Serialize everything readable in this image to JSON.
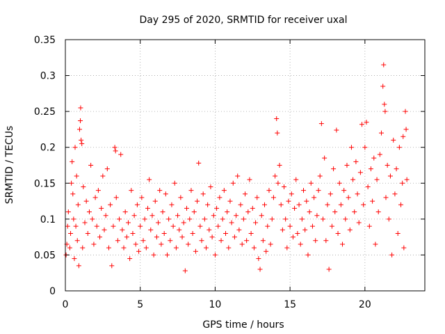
{
  "chart_data": {
    "type": "scatter",
    "title": "Day 295 of 2020, SRMTID for receiver uxal",
    "xlabel": "GPS time / hours",
    "ylabel": "SRMTID / TECUs",
    "xlim": [
      0,
      24
    ],
    "ylim": [
      0,
      0.35
    ],
    "x_ticks": [
      0,
      5,
      10,
      15,
      20
    ],
    "x_tick_labels": [
      "0",
      "5",
      "10",
      "15",
      "20"
    ],
    "y_ticks": [
      0,
      0.05,
      0.1,
      0.15,
      0.2,
      0.25,
      0.3,
      0.35
    ],
    "y_tick_labels": [
      "0",
      "0.05",
      "0.1",
      "0.15",
      "0.2",
      "0.25",
      "0.3",
      "0.35"
    ],
    "grid": true,
    "marker": "+",
    "color": "#ff0000",
    "series": [
      {
        "name": "SRMTID",
        "points": [
          [
            0.05,
            0.05
          ],
          [
            0.1,
            0.065
          ],
          [
            0.15,
            0.09
          ],
          [
            0.2,
            0.11
          ],
          [
            0.3,
            0.06
          ],
          [
            0.35,
            0.08
          ],
          [
            0.4,
            0.15
          ],
          [
            0.45,
            0.18
          ],
          [
            0.5,
            0.135
          ],
          [
            0.55,
            0.1
          ],
          [
            0.6,
            0.045
          ],
          [
            0.65,
            0.2
          ],
          [
            0.7,
            0.09
          ],
          [
            0.75,
            0.16
          ],
          [
            0.8,
            0.07
          ],
          [
            0.85,
            0.12
          ],
          [
            0.9,
            0.035
          ],
          [
            0.95,
            0.225
          ],
          [
            1.0,
            0.237
          ],
          [
            1.02,
            0.255
          ],
          [
            1.05,
            0.21
          ],
          [
            1.1,
            0.205
          ],
          [
            1.15,
            0.06
          ],
          [
            1.2,
            0.145
          ],
          [
            1.3,
            0.095
          ],
          [
            1.4,
            0.125
          ],
          [
            1.5,
            0.08
          ],
          [
            1.6,
            0.11
          ],
          [
            1.7,
            0.175
          ],
          [
            1.8,
            0.1
          ],
          [
            1.9,
            0.065
          ],
          [
            2.0,
            0.13
          ],
          [
            2.1,
            0.09
          ],
          [
            2.2,
            0.14
          ],
          [
            2.3,
            0.075
          ],
          [
            2.4,
            0.115
          ],
          [
            2.5,
            0.16
          ],
          [
            2.6,
            0.085
          ],
          [
            2.7,
            0.105
          ],
          [
            2.8,
            0.17
          ],
          [
            2.9,
            0.06
          ],
          [
            3.0,
            0.12
          ],
          [
            3.1,
            0.035
          ],
          [
            3.2,
            0.09
          ],
          [
            3.3,
            0.2
          ],
          [
            3.35,
            0.195
          ],
          [
            3.4,
            0.13
          ],
          [
            3.5,
            0.07
          ],
          [
            3.6,
            0.1
          ],
          [
            3.7,
            0.19
          ],
          [
            3.8,
            0.085
          ],
          [
            3.9,
            0.06
          ],
          [
            4.0,
            0.11
          ],
          [
            4.1,
            0.075
          ],
          [
            4.2,
            0.095
          ],
          [
            4.3,
            0.045
          ],
          [
            4.4,
            0.14
          ],
          [
            4.5,
            0.08
          ],
          [
            4.6,
            0.105
          ],
          [
            4.7,
            0.065
          ],
          [
            4.8,
            0.12
          ],
          [
            4.9,
            0.055
          ],
          [
            5.0,
            0.09
          ],
          [
            5.1,
            0.13
          ],
          [
            5.2,
            0.07
          ],
          [
            5.3,
            0.1
          ],
          [
            5.4,
            0.06
          ],
          [
            5.5,
            0.115
          ],
          [
            5.6,
            0.155
          ],
          [
            5.7,
            0.085
          ],
          [
            5.8,
            0.105
          ],
          [
            5.9,
            0.05
          ],
          [
            6.0,
            0.125
          ],
          [
            6.1,
            0.075
          ],
          [
            6.2,
            0.095
          ],
          [
            6.3,
            0.14
          ],
          [
            6.4,
            0.065
          ],
          [
            6.5,
            0.11
          ],
          [
            6.6,
            0.08
          ],
          [
            6.7,
            0.135
          ],
          [
            6.8,
            0.05
          ],
          [
            6.9,
            0.1
          ],
          [
            7.0,
            0.07
          ],
          [
            7.1,
            0.12
          ],
          [
            7.2,
            0.09
          ],
          [
            7.3,
            0.15
          ],
          [
            7.4,
            0.06
          ],
          [
            7.5,
            0.105
          ],
          [
            7.6,
            0.085
          ],
          [
            7.7,
            0.13
          ],
          [
            7.8,
            0.075
          ],
          [
            7.9,
            0.095
          ],
          [
            8.0,
            0.028
          ],
          [
            8.1,
            0.115
          ],
          [
            8.2,
            0.065
          ],
          [
            8.3,
            0.1
          ],
          [
            8.4,
            0.14
          ],
          [
            8.5,
            0.08
          ],
          [
            8.6,
            0.11
          ],
          [
            8.7,
            0.055
          ],
          [
            8.8,
            0.125
          ],
          [
            8.9,
            0.178
          ],
          [
            9.0,
            0.09
          ],
          [
            9.1,
            0.07
          ],
          [
            9.2,
            0.135
          ],
          [
            9.3,
            0.1
          ],
          [
            9.4,
            0.06
          ],
          [
            9.5,
            0.12
          ],
          [
            9.6,
            0.085
          ],
          [
            9.7,
            0.145
          ],
          [
            9.8,
            0.075
          ],
          [
            9.9,
            0.105
          ],
          [
            10.0,
            0.05
          ],
          [
            10.1,
            0.115
          ],
          [
            10.2,
            0.09
          ],
          [
            10.3,
            0.13
          ],
          [
            10.4,
            0.07
          ],
          [
            10.5,
            0.1
          ],
          [
            10.6,
            0.14
          ],
          [
            10.7,
            0.08
          ],
          [
            10.8,
            0.11
          ],
          [
            10.9,
            0.06
          ],
          [
            11.0,
            0.125
          ],
          [
            11.1,
            0.095
          ],
          [
            11.2,
            0.15
          ],
          [
            11.3,
            0.075
          ],
          [
            11.4,
            0.105
          ],
          [
            11.5,
            0.16
          ],
          [
            11.6,
            0.085
          ],
          [
            11.7,
            0.12
          ],
          [
            11.8,
            0.065
          ],
          [
            11.9,
            0.1
          ],
          [
            12.0,
            0.135
          ],
          [
            12.1,
            0.07
          ],
          [
            12.2,
            0.11
          ],
          [
            12.3,
            0.155
          ],
          [
            12.4,
            0.08
          ],
          [
            12.5,
            0.115
          ],
          [
            12.6,
            0.06
          ],
          [
            12.7,
            0.095
          ],
          [
            12.8,
            0.13
          ],
          [
            12.9,
            0.045
          ],
          [
            13.0,
            0.03
          ],
          [
            13.1,
            0.105
          ],
          [
            13.2,
            0.07
          ],
          [
            13.3,
            0.12
          ],
          [
            13.4,
            0.055
          ],
          [
            13.5,
            0.09
          ],
          [
            13.6,
            0.14
          ],
          [
            13.7,
            0.065
          ],
          [
            13.8,
            0.1
          ],
          [
            13.9,
            0.13
          ],
          [
            14.0,
            0.16
          ],
          [
            14.1,
            0.24
          ],
          [
            14.15,
            0.22
          ],
          [
            14.2,
            0.15
          ],
          [
            14.3,
            0.175
          ],
          [
            14.4,
            0.12
          ],
          [
            14.5,
            0.085
          ],
          [
            14.6,
            0.145
          ],
          [
            14.7,
            0.1
          ],
          [
            14.8,
            0.06
          ],
          [
            14.9,
            0.125
          ],
          [
            15.0,
            0.09
          ],
          [
            15.1,
            0.135
          ],
          [
            15.2,
            0.075
          ],
          [
            15.3,
            0.115
          ],
          [
            15.4,
            0.155
          ],
          [
            15.5,
            0.08
          ],
          [
            15.6,
            0.12
          ],
          [
            15.7,
            0.065
          ],
          [
            15.8,
            0.1
          ],
          [
            15.9,
            0.14
          ],
          [
            16.0,
            0.085
          ],
          [
            16.1,
            0.125
          ],
          [
            16.2,
            0.05
          ],
          [
            16.3,
            0.11
          ],
          [
            16.4,
            0.15
          ],
          [
            16.5,
            0.09
          ],
          [
            16.6,
            0.13
          ],
          [
            16.7,
            0.07
          ],
          [
            16.8,
            0.105
          ],
          [
            16.9,
            0.14
          ],
          [
            17.0,
            0.16
          ],
          [
            17.1,
            0.233
          ],
          [
            17.2,
            0.1
          ],
          [
            17.3,
            0.185
          ],
          [
            17.4,
            0.07
          ],
          [
            17.5,
            0.12
          ],
          [
            17.6,
            0.03
          ],
          [
            17.7,
            0.135
          ],
          [
            17.8,
            0.09
          ],
          [
            17.9,
            0.17
          ],
          [
            18.0,
            0.11
          ],
          [
            18.1,
            0.224
          ],
          [
            18.2,
            0.08
          ],
          [
            18.3,
            0.15
          ],
          [
            18.4,
            0.12
          ],
          [
            18.5,
            0.065
          ],
          [
            18.6,
            0.14
          ],
          [
            18.7,
            0.1
          ],
          [
            18.8,
            0.175
          ],
          [
            18.9,
            0.13
          ],
          [
            19.0,
            0.085
          ],
          [
            19.1,
            0.2
          ],
          [
            19.2,
            0.155
          ],
          [
            19.3,
            0.11
          ],
          [
            19.4,
            0.18
          ],
          [
            19.5,
            0.135
          ],
          [
            19.6,
            0.095
          ],
          [
            19.7,
            0.165
          ],
          [
            19.8,
            0.232
          ],
          [
            19.9,
            0.12
          ],
          [
            20.0,
            0.2
          ],
          [
            20.1,
            0.235
          ],
          [
            20.2,
            0.145
          ],
          [
            20.3,
            0.09
          ],
          [
            20.4,
            0.17
          ],
          [
            20.5,
            0.125
          ],
          [
            20.6,
            0.185
          ],
          [
            20.7,
            0.065
          ],
          [
            20.8,
            0.155
          ],
          [
            20.9,
            0.11
          ],
          [
            21.0,
            0.19
          ],
          [
            21.1,
            0.22
          ],
          [
            21.2,
            0.285
          ],
          [
            21.25,
            0.315
          ],
          [
            21.3,
            0.26
          ],
          [
            21.35,
            0.25
          ],
          [
            21.4,
            0.13
          ],
          [
            21.5,
            0.175
          ],
          [
            21.6,
            0.1
          ],
          [
            21.7,
            0.16
          ],
          [
            21.8,
            0.05
          ],
          [
            21.9,
            0.21
          ],
          [
            22.0,
            0.135
          ],
          [
            22.1,
            0.17
          ],
          [
            22.2,
            0.08
          ],
          [
            22.3,
            0.2
          ],
          [
            22.4,
            0.12
          ],
          [
            22.5,
            0.15
          ],
          [
            22.55,
            0.215
          ],
          [
            22.6,
            0.06
          ],
          [
            22.7,
            0.25
          ],
          [
            22.75,
            0.225
          ],
          [
            22.8,
            0.155
          ]
        ]
      }
    ]
  }
}
